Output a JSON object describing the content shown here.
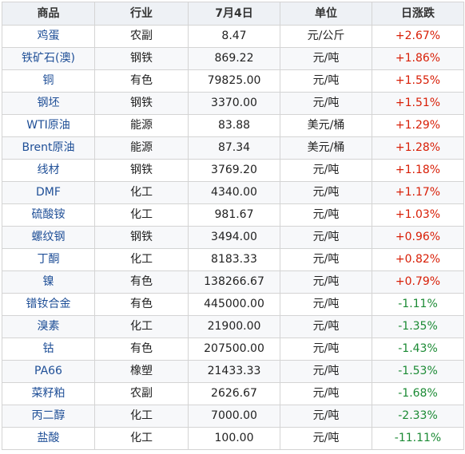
{
  "table": {
    "headers": [
      "商品",
      "行业",
      "7月4日",
      "单位",
      "日涨跌"
    ],
    "rows": [
      {
        "name": "鸡蛋",
        "industry": "农副",
        "price": "8.47",
        "unit": "元/公斤",
        "change": "+2.67%",
        "dir": "up"
      },
      {
        "name": "铁矿石(澳)",
        "industry": "钢铁",
        "price": "869.22",
        "unit": "元/吨",
        "change": "+1.86%",
        "dir": "up"
      },
      {
        "name": "铜",
        "industry": "有色",
        "price": "79825.00",
        "unit": "元/吨",
        "change": "+1.55%",
        "dir": "up"
      },
      {
        "name": "钢坯",
        "industry": "钢铁",
        "price": "3370.00",
        "unit": "元/吨",
        "change": "+1.51%",
        "dir": "up"
      },
      {
        "name": "WTI原油",
        "industry": "能源",
        "price": "83.88",
        "unit": "美元/桶",
        "change": "+1.29%",
        "dir": "up"
      },
      {
        "name": "Brent原油",
        "industry": "能源",
        "price": "87.34",
        "unit": "美元/桶",
        "change": "+1.28%",
        "dir": "up"
      },
      {
        "name": "线材",
        "industry": "钢铁",
        "price": "3769.20",
        "unit": "元/吨",
        "change": "+1.18%",
        "dir": "up"
      },
      {
        "name": "DMF",
        "industry": "化工",
        "price": "4340.00",
        "unit": "元/吨",
        "change": "+1.17%",
        "dir": "up"
      },
      {
        "name": "硫酸铵",
        "industry": "化工",
        "price": "981.67",
        "unit": "元/吨",
        "change": "+1.03%",
        "dir": "up"
      },
      {
        "name": "螺纹钢",
        "industry": "钢铁",
        "price": "3494.00",
        "unit": "元/吨",
        "change": "+0.96%",
        "dir": "up"
      },
      {
        "name": "丁酮",
        "industry": "化工",
        "price": "8183.33",
        "unit": "元/吨",
        "change": "+0.82%",
        "dir": "up"
      },
      {
        "name": "镍",
        "industry": "有色",
        "price": "138266.67",
        "unit": "元/吨",
        "change": "+0.79%",
        "dir": "up"
      },
      {
        "name": "镨钕合金",
        "industry": "有色",
        "price": "445000.00",
        "unit": "元/吨",
        "change": "-1.11%",
        "dir": "down"
      },
      {
        "name": "溴素",
        "industry": "化工",
        "price": "21900.00",
        "unit": "元/吨",
        "change": "-1.35%",
        "dir": "down"
      },
      {
        "name": "钴",
        "industry": "有色",
        "price": "207500.00",
        "unit": "元/吨",
        "change": "-1.43%",
        "dir": "down"
      },
      {
        "name": "PA66",
        "industry": "橡塑",
        "price": "21433.33",
        "unit": "元/吨",
        "change": "-1.53%",
        "dir": "down"
      },
      {
        "name": "菜籽粕",
        "industry": "农副",
        "price": "2626.67",
        "unit": "元/吨",
        "change": "-1.68%",
        "dir": "down"
      },
      {
        "name": "丙二醇",
        "industry": "化工",
        "price": "7000.00",
        "unit": "元/吨",
        "change": "-2.33%",
        "dir": "down"
      },
      {
        "name": "盐酸",
        "industry": "化工",
        "price": "100.00",
        "unit": "元/吨",
        "change": "-11.11%",
        "dir": "down"
      }
    ]
  },
  "colors": {
    "up": "#d81e06",
    "down": "#1b8a34",
    "name_link": "#1f4f97",
    "header_bg": "#eef1f5"
  }
}
